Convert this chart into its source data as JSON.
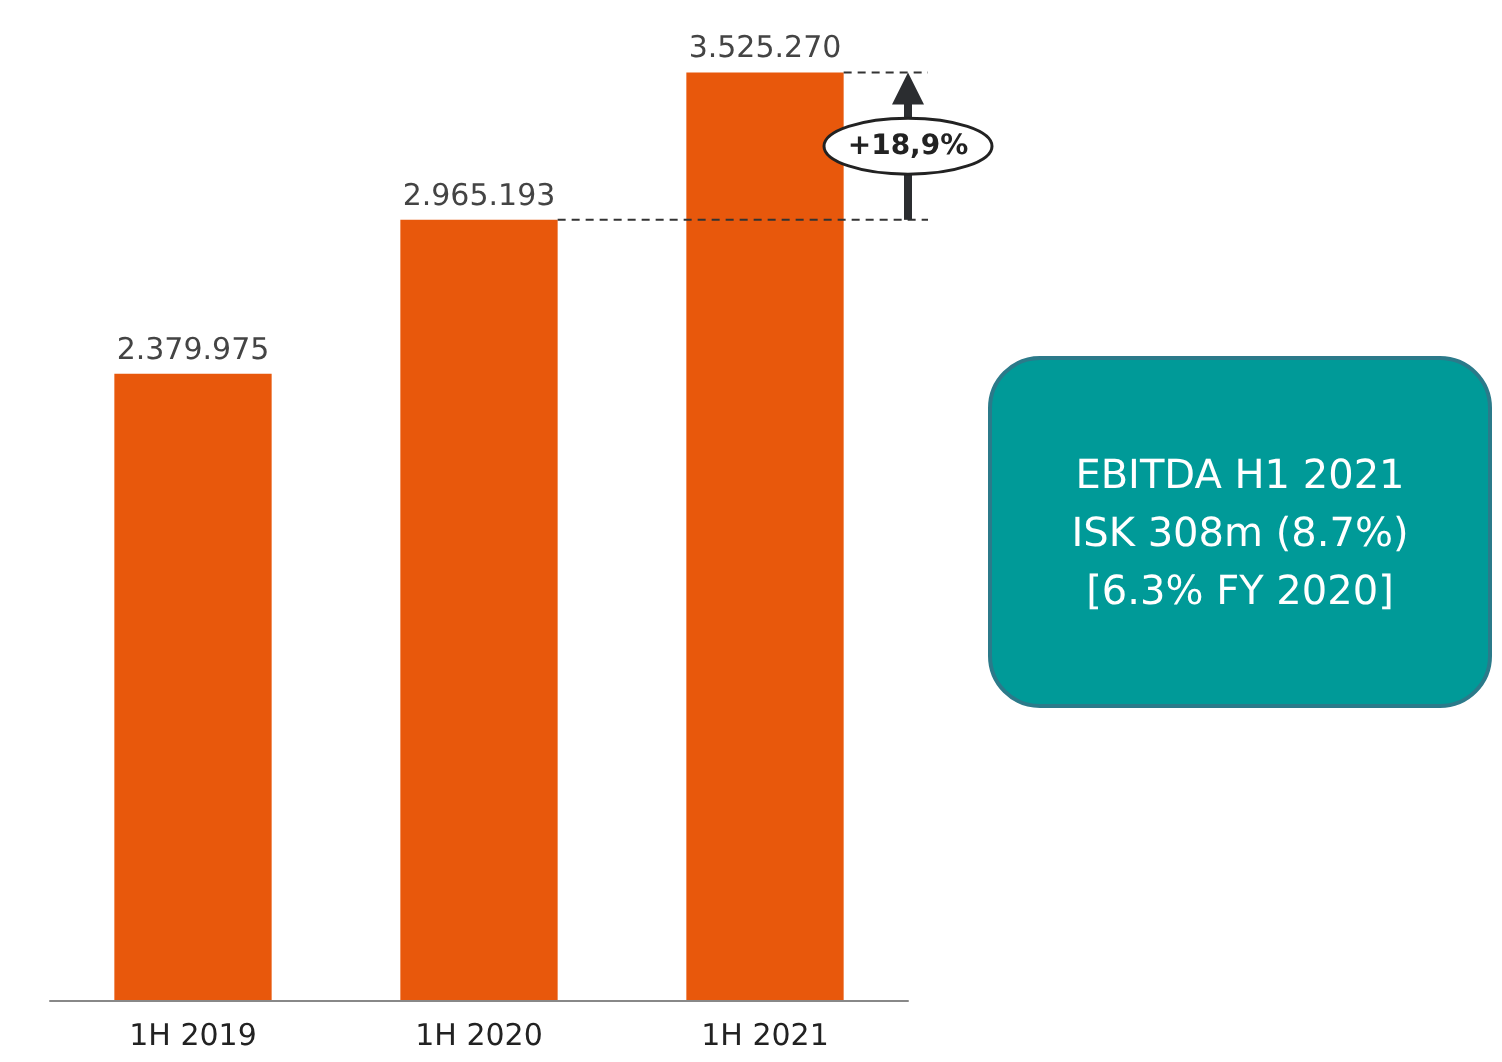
{
  "chart_data": {
    "type": "bar",
    "categories": [
      "1H 2019",
      "1H 2020",
      "1H 2021"
    ],
    "values": [
      2379975,
      2965193,
      3525270
    ],
    "value_labels": [
      "2.379.975",
      "2.965.193",
      "3.525.270"
    ],
    "color": "#e8580c",
    "annotations": [
      "+18,9%",
      "EBITDA H1 2021",
      "ISK 308m (8.7%)",
      "[6.3% FY 2020]"
    ]
  }
}
